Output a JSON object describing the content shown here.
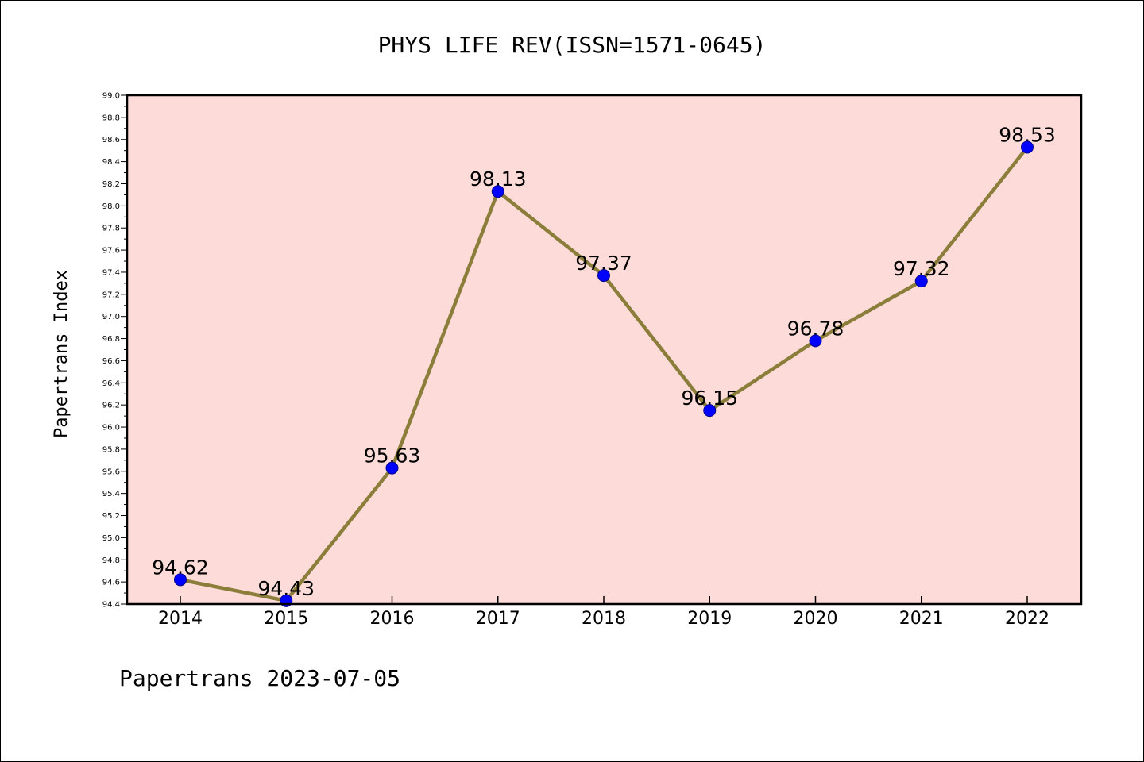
{
  "colors": {
    "plot_background": "#fddbd8",
    "line": "#8b7d3a",
    "marker_fill": "#0000ff",
    "marker_stroke": "#00008b",
    "axis": "#000000"
  },
  "footer": {
    "text": "Papertrans 2023-07-05"
  },
  "chart_data": {
    "type": "line",
    "title": "PHYS LIFE REV(ISSN=1571-0645)",
    "xlabel": "",
    "ylabel": "Papertrans Index",
    "categories": [
      "2014",
      "2015",
      "2016",
      "2017",
      "2018",
      "2019",
      "2020",
      "2021",
      "2022"
    ],
    "series": [
      {
        "name": "Papertrans Index",
        "values": [
          94.62,
          94.43,
          95.63,
          98.13,
          97.37,
          96.15,
          96.78,
          97.32,
          98.53
        ],
        "labels": [
          "94.62",
          "94.43",
          "95.63",
          "98.13",
          "97.37",
          "96.15",
          "96.78",
          "97.32",
          "98.53"
        ]
      }
    ],
    "ylim": [
      94.4,
      99.0
    ],
    "yticks": [
      "94.4",
      "94.6",
      "94.8",
      "95.0",
      "95.2",
      "95.4",
      "95.6",
      "95.8",
      "96.0",
      "96.2",
      "96.4",
      "96.6",
      "96.8",
      "97.0",
      "97.2",
      "97.4",
      "97.6",
      "97.8",
      "98.0",
      "98.2",
      "98.4",
      "98.6",
      "98.8",
      "99.0"
    ],
    "grid": false,
    "legend": "none"
  }
}
